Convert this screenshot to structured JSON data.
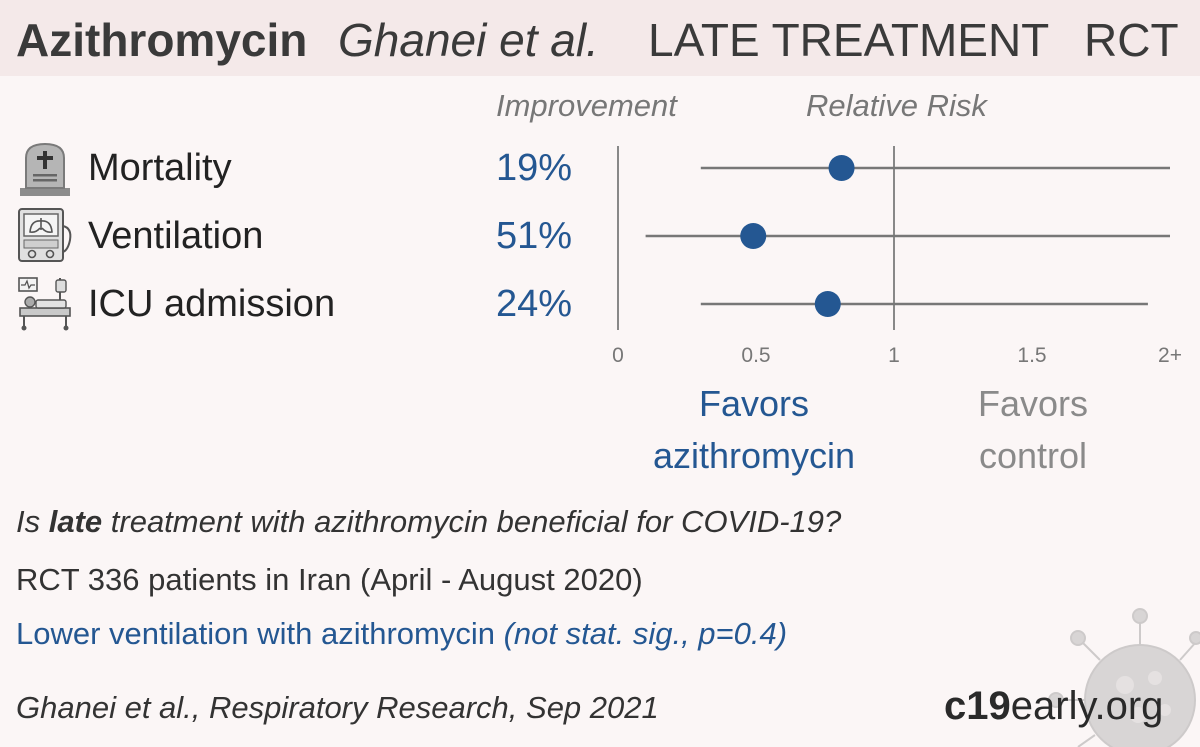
{
  "header": {
    "drug": "Azithromycin",
    "author": "Ghanei et al.",
    "stage": "LATE TREATMENT",
    "type": "RCT"
  },
  "columns": {
    "improvement": "Improvement",
    "relative_risk": "Relative Risk"
  },
  "rows": [
    {
      "label": "Mortality",
      "improvement": "19%",
      "icon": "tombstone-icon"
    },
    {
      "label": "Ventilation",
      "improvement": "51%",
      "icon": "ventilator-icon"
    },
    {
      "label": "ICU admission",
      "improvement": "24%",
      "icon": "icu-bed-icon"
    }
  ],
  "chart_data": {
    "type": "scatter",
    "subtype": "forest-plot",
    "categories": [
      "Mortality",
      "Ventilation",
      "ICU admission"
    ],
    "series": [
      {
        "points": [
          {
            "category": "Mortality",
            "rr": 0.81,
            "ci_low": 0.3,
            "ci_high": 2.0
          },
          {
            "category": "Ventilation",
            "rr": 0.49,
            "ci_low": 0.1,
            "ci_high": 2.0
          },
          {
            "category": "ICU admission",
            "rr": 0.76,
            "ci_low": 0.3,
            "ci_high": 1.92
          }
        ]
      }
    ],
    "xlim": [
      0,
      2
    ],
    "x_ticks": [
      0,
      0.5,
      1,
      1.5,
      2
    ],
    "x_tick_labels": [
      "0",
      "0.5",
      "1",
      "1.5",
      "2+"
    ],
    "reference_line": 1,
    "marker_color": "#245792",
    "line_color": "#777777"
  },
  "favors": {
    "drug_line1": "Favors",
    "drug_line2": "azithromycin",
    "control_line1": "Favors",
    "control_line2": "control"
  },
  "summary": {
    "question_prefix": "Is ",
    "question_bold": "late",
    "question_suffix": " treatment with azithromycin beneficial for COVID-19?",
    "info": "RCT 336 patients in Iran (April - August 2020)",
    "result_main": "Lower ventilation with azithromycin ",
    "result_detail": "(not stat. sig., p=0.4)"
  },
  "citation": "Ghanei et al., Respiratory Research, Sep 2021",
  "brand": {
    "bold": "c19",
    "rest": "early.org"
  },
  "colors": {
    "accent": "#245792",
    "header_bg": "#f4e9e9",
    "background": "#fbf6f6"
  }
}
